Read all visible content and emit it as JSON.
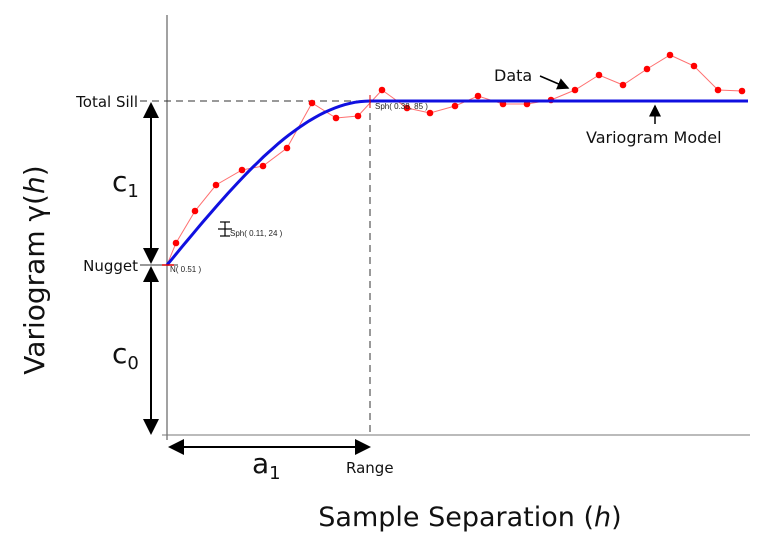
{
  "diagram": {
    "ylabel_prefix": "Variogram ",
    "ylabel_gamma": "γ",
    "ylabel_paren_open": "(",
    "ylabel_h": "h",
    "ylabel_paren_close": ")",
    "xlabel_prefix": "Sample Separation (",
    "xlabel_h": "h",
    "xlabel_suffix": ")",
    "total_sill": "Total Sill",
    "nugget": "Nugget",
    "c1": "c",
    "c1_sub": "1",
    "c0": "c",
    "c0_sub": "0",
    "a1": "a",
    "a1_sub": "1",
    "range": "Range",
    "data_label": "Data",
    "model_label": "Variogram Model",
    "annot_nugget": "N( 0.51 )",
    "annot_sph1": "Sph( 0.11, 24 )",
    "annot_sph2": "Sph( 0.38, 85 )",
    "colors": {
      "data": "#ff0000",
      "data_line": "#ff7070",
      "model": "#1010e0",
      "axis": "#333333"
    }
  }
}
